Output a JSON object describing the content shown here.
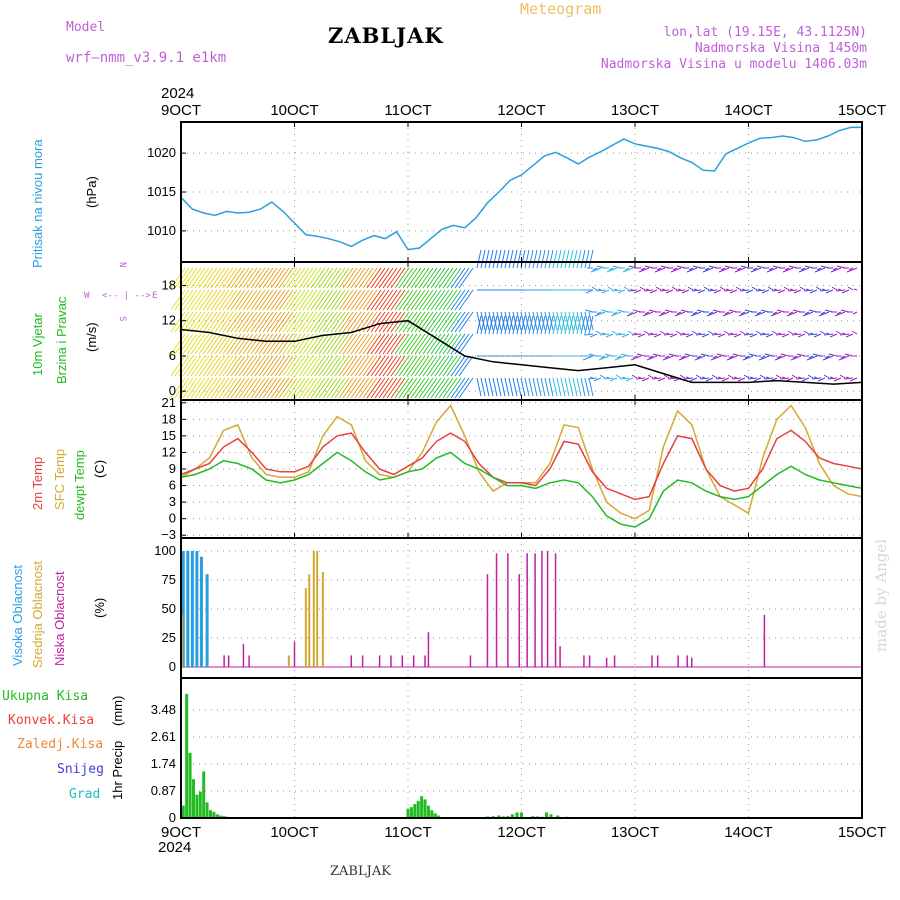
{
  "header": {
    "model_label": "Model",
    "model_name": "wrf—nmm_v3.9.1  e1km",
    "station": "ZABLJAK",
    "meteogram": "Meteogram",
    "lonlat": "lon,lat (19.15E, 43.1125N)",
    "elevation": "Nadmorska Visina 1450m",
    "model_elevation": "Nadmorska Visina u modelu 1406.03m"
  },
  "footer": {
    "station": "ZABLJAK",
    "watermark": "made by Angel"
  },
  "colors": {
    "pressure": "#2a9fe0",
    "temp": "#e84040",
    "sfc_temp": "#d4a830",
    "dewpt": "#22bb22",
    "high_cloud": "#2a9fe0",
    "mid_cloud": "#d4a830",
    "low_cloud": "#c020a0",
    "total_precip": "#22bb22",
    "conv_precip": "#e84040",
    "frozen_precip": "#ee8833",
    "snow": "#4040dd",
    "hail": "#22bbbb"
  },
  "time_axis": {
    "top_year": "2024",
    "bottom_year": "2024",
    "labels": [
      "9OCT",
      "10OCT",
      "11OCT",
      "12OCT",
      "13OCT",
      "14OCT",
      "15OCT"
    ]
  },
  "chart_data": [
    {
      "type": "line",
      "ylabel": "Pritisak na nivou mora",
      "unit": "(hPa)",
      "yticks": [
        "1010",
        "1015",
        "1020"
      ],
      "ylim": [
        1006,
        1024
      ],
      "x_days": [
        0,
        0.1,
        0.2,
        0.3,
        0.4,
        0.5,
        0.6,
        0.7,
        0.8,
        0.9,
        1.0,
        1.1,
        1.2,
        1.3,
        1.4,
        1.5,
        1.6,
        1.7,
        1.8,
        1.9,
        2.0,
        2.1,
        2.2,
        2.3,
        2.4,
        2.5,
        2.6,
        2.7,
        2.8,
        2.9,
        3.0,
        3.1,
        3.2,
        3.3,
        3.4,
        3.5,
        3.6,
        3.7,
        3.8,
        3.9,
        4.0,
        4.1,
        4.2,
        4.3,
        4.4,
        4.5,
        4.6,
        4.7,
        4.8,
        4.9,
        5.0,
        5.1,
        5.2,
        5.3,
        5.4,
        5.5,
        5.6,
        5.7,
        5.8,
        5.9,
        6.0
      ],
      "series": [
        {
          "values": [
            1014.3,
            1012.8,
            1012.3,
            1012.0,
            1012.5,
            1012.3,
            1012.4,
            1012.8,
            1013.7,
            1012.5,
            1011.0,
            1009.5,
            1009.3,
            1009.0,
            1008.6,
            1008.0,
            1008.8,
            1009.4,
            1009.0,
            1009.9,
            1007.6,
            1007.8,
            1009.0,
            1010.2,
            1010.7,
            1010.4,
            1011.7,
            1013.6,
            1015.0,
            1016.5,
            1017.2,
            1018.4,
            1019.6,
            1020.1,
            1019.4,
            1018.6,
            1019.5,
            1020.2,
            1021.0,
            1021.8,
            1021.2,
            1020.9,
            1020.6,
            1020.2,
            1019.4,
            1018.8,
            1017.8,
            1017.7,
            1019.9,
            1020.6,
            1021.3,
            1021.9,
            1022.0,
            1022.2,
            1022.0,
            1021.5,
            1021.7,
            1022.2,
            1022.9,
            1023.3,
            1023.3
          ]
        }
      ]
    },
    {
      "type": "line",
      "ylabel": "10m Vjetar Brzina i Pravac",
      "unit": "(m/s)",
      "yticks": [
        "0",
        "6",
        "12",
        "18"
      ],
      "ylim": [
        -1.5,
        22
      ],
      "compass": [
        "N",
        "W",
        "E",
        "S"
      ],
      "x_days": [
        0,
        0.25,
        0.5,
        0.75,
        1.0,
        1.25,
        1.5,
        1.75,
        2.0,
        2.25,
        2.5,
        2.75,
        3.0,
        3.25,
        3.5,
        3.75,
        4.0,
        4.25,
        4.5,
        4.75,
        5.0,
        5.25,
        5.5,
        5.75,
        6.0
      ],
      "series": [
        {
          "values": [
            10.5,
            10.0,
            9.0,
            8.5,
            8.5,
            9.5,
            10.0,
            11.5,
            12.0,
            9.0,
            6.0,
            5.0,
            4.5,
            4.0,
            3.5,
            4.0,
            4.5,
            3.0,
            1.5,
            1.5,
            1.5,
            1.8,
            1.5,
            1.2,
            1.5
          ]
        }
      ],
      "barb_colors": [
        "#e8e020",
        "#e8d020",
        "#e8b020",
        "#e8a020",
        "#c8e020",
        "#a0d820",
        "#e8a020",
        "#e84020",
        "#40c820",
        "#30c840",
        "#2080e8",
        "#2080e8",
        "#3090e8",
        "#30c0e0",
        "#3090e8",
        "#30b0e0",
        "#9020c0",
        "#9020c0",
        "#4040dd",
        "#9020c0",
        "#4040dd",
        "#9020c0",
        "#4040dd",
        "#9020c0"
      ]
    },
    {
      "type": "line",
      "ylabel": "2m Temp / SFC Temp / dewpt Temp",
      "unit": "(C)",
      "yticks": [
        "−3",
        "0",
        "3",
        "6",
        "9",
        "12",
        "15",
        "18",
        "21"
      ],
      "ylim": [
        -3,
        21
      ],
      "x_days": [
        0,
        0.125,
        0.25,
        0.375,
        0.5,
        0.625,
        0.75,
        0.875,
        1.0,
        1.125,
        1.25,
        1.375,
        1.5,
        1.625,
        1.75,
        1.875,
        2.0,
        2.125,
        2.25,
        2.375,
        2.5,
        2.625,
        2.75,
        2.875,
        3.0,
        3.125,
        3.25,
        3.375,
        3.5,
        3.625,
        3.75,
        3.875,
        4.0,
        4.125,
        4.25,
        4.375,
        4.5,
        4.625,
        4.75,
        4.875,
        5.0,
        5.125,
        5.25,
        5.375,
        5.5,
        5.625,
        5.75,
        5.875,
        6.0
      ],
      "series": [
        {
          "name": "2m Temp",
          "values": [
            8.0,
            9.0,
            10.0,
            13.0,
            14.5,
            12.0,
            9.0,
            8.5,
            8.5,
            9.5,
            13.0,
            15.0,
            15.5,
            12.0,
            9.0,
            8.0,
            9.5,
            11.0,
            14.0,
            15.5,
            14.0,
            10.0,
            7.5,
            6.5,
            6.5,
            6.0,
            9.0,
            14.0,
            13.5,
            8.5,
            5.5,
            4.5,
            3.5,
            4.0,
            10.0,
            15.0,
            14.5,
            9.0,
            6.0,
            5.0,
            5.5,
            9.0,
            14.5,
            16.0,
            14.0,
            11.0,
            10.0,
            9.5,
            9.0
          ]
        },
        {
          "name": "SFC Temp",
          "values": [
            7.5,
            9.0,
            11.0,
            16.0,
            17.0,
            11.0,
            8.0,
            7.5,
            7.5,
            8.5,
            15.0,
            18.5,
            17.0,
            10.5,
            8.0,
            7.5,
            8.5,
            12.0,
            17.5,
            20.5,
            15.0,
            8.5,
            5.0,
            6.5,
            6.5,
            6.5,
            10.0,
            17.0,
            16.5,
            9.0,
            3.0,
            1.0,
            0.0,
            1.5,
            13.0,
            19.5,
            17.0,
            9.0,
            4.0,
            2.5,
            1.0,
            11.0,
            18.0,
            20.5,
            16.5,
            10.0,
            6.0,
            4.5,
            4.0
          ]
        },
        {
          "name": "dewpt Temp",
          "values": [
            7.5,
            8.0,
            9.0,
            10.5,
            10.0,
            9.0,
            7.0,
            6.5,
            7.0,
            8.0,
            10.0,
            12.0,
            10.5,
            8.5,
            7.0,
            7.5,
            8.5,
            9.0,
            11.0,
            12.0,
            10.0,
            9.0,
            7.5,
            6.0,
            6.0,
            5.5,
            6.5,
            7.0,
            6.5,
            4.0,
            0.5,
            -1.0,
            -1.5,
            0.0,
            5.0,
            7.0,
            6.5,
            5.0,
            4.0,
            3.5,
            4.0,
            6.0,
            8.0,
            9.5,
            8.0,
            7.0,
            6.5,
            6.0,
            5.5
          ]
        }
      ]
    },
    {
      "type": "bar",
      "ylabel": "Visoka Oblacnost / Srednja Oblacnost / Niska Oblacnost",
      "unit": "(%)",
      "yticks": [
        "0",
        "25",
        "50",
        "75",
        "100"
      ],
      "ylim": [
        0,
        100
      ],
      "series": [
        {
          "name": "Visoka Oblacnost",
          "x_days": [
            0.02,
            0.06,
            0.1,
            0.14,
            0.18,
            0.23
          ],
          "values": [
            100,
            100,
            100,
            100,
            95,
            80
          ]
        },
        {
          "name": "Srednja Oblacnost",
          "x_days": [
            0.01,
            0.95,
            1.1,
            1.13,
            1.17,
            1.2,
            1.25
          ],
          "values": [
            45,
            10,
            68,
            80,
            100,
            100,
            82
          ]
        },
        {
          "name": "Niska Oblacnost",
          "x_days": [
            0.38,
            0.42,
            0.55,
            0.6,
            1.0,
            1.5,
            1.6,
            1.75,
            1.85,
            1.95,
            2.05,
            2.15,
            2.18,
            2.55,
            2.7,
            2.78,
            2.88,
            2.98,
            3.05,
            3.12,
            3.18,
            3.23,
            3.3,
            3.34,
            3.55,
            3.6,
            3.75,
            3.82,
            4.15,
            4.2,
            4.38,
            4.46,
            4.5,
            5.14
          ],
          "values": [
            10,
            10,
            20,
            10,
            22,
            10,
            10,
            10,
            10,
            10,
            10,
            10,
            30,
            10,
            80,
            98,
            98,
            80,
            98,
            98,
            100,
            100,
            98,
            18,
            10,
            10,
            8,
            10,
            10,
            10,
            10,
            10,
            8,
            45
          ]
        }
      ]
    },
    {
      "type": "bar",
      "ylabel": "1hr Precip",
      "unit": "(mm)",
      "yticks": [
        "0",
        "0.87",
        "1.74",
        "2.61",
        "3.48"
      ],
      "ylim": [
        0,
        4.35
      ],
      "legend": [
        "Ukupna Kisa",
        "Konvek.Kisa",
        "Zaledj.Kisa",
        "Snijeg",
        "Grad"
      ],
      "series": [
        {
          "name": "Ukupna Kisa",
          "x_days": [
            0.02,
            0.05,
            0.08,
            0.11,
            0.14,
            0.17,
            0.2,
            0.23,
            0.26,
            0.29,
            0.32,
            0.35,
            0.38,
            0.41,
            2.0,
            2.03,
            2.06,
            2.09,
            2.12,
            2.15,
            2.18,
            2.21,
            2.24,
            2.27,
            2.7,
            2.75,
            2.8,
            2.84,
            2.88,
            2.92,
            2.96,
            3.0,
            3.1,
            3.14,
            3.18,
            3.22,
            3.26,
            3.32,
            3.4,
            3.44
          ],
          "values": [
            0.4,
            4.0,
            2.1,
            1.25,
            0.75,
            0.85,
            1.5,
            0.5,
            0.25,
            0.2,
            0.12,
            0.08,
            0.06,
            0.04,
            0.3,
            0.35,
            0.45,
            0.55,
            0.7,
            0.6,
            0.4,
            0.25,
            0.15,
            0.08,
            0.05,
            0.06,
            0.08,
            0.05,
            0.06,
            0.12,
            0.18,
            0.18,
            0.06,
            0.05,
            0.04,
            0.18,
            0.12,
            0.08,
            0.04,
            0.03
          ]
        }
      ]
    }
  ]
}
